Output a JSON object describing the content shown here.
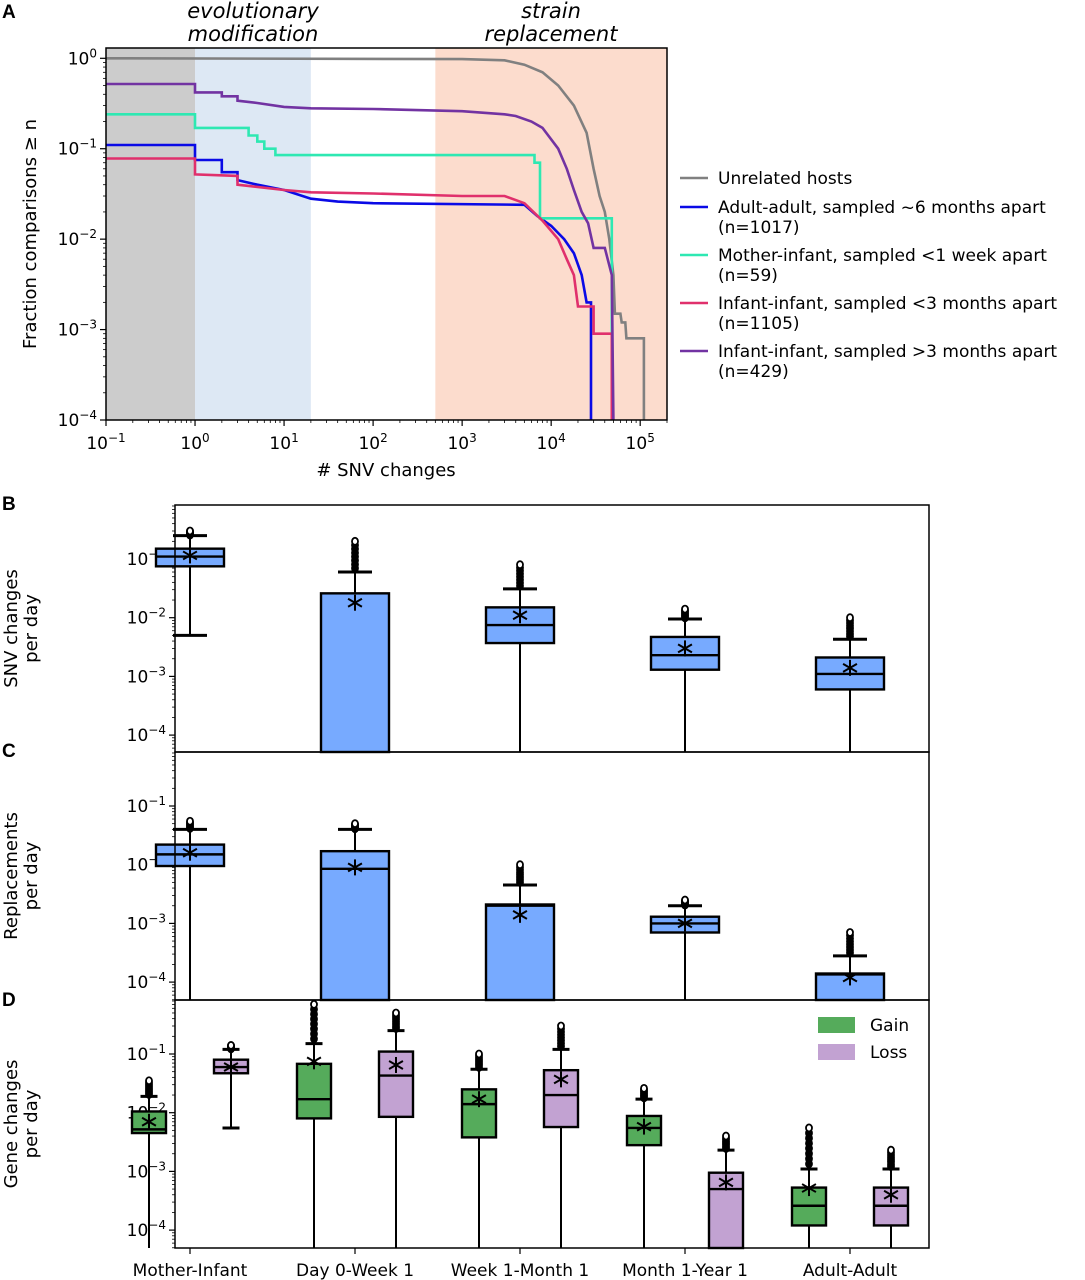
{
  "panel_labels": {
    "a": "A",
    "b": "B",
    "c": "C",
    "d": "D"
  },
  "annotations": {
    "evolutionary": [
      "evolutionary",
      "modification"
    ],
    "replacement": [
      "strain",
      "replacement"
    ],
    "evolutionary_color": "#6d9bb3",
    "replacement_color": "#c9735c"
  },
  "chart_data": [
    {
      "type": "line",
      "panel": "A",
      "xlabel": "# SNV changes",
      "ylabel": "Fraction comparisons ≥ n",
      "xscale": "log",
      "yscale": "log",
      "xlim": [
        0.1,
        200000
      ],
      "ylim": [
        0.0001,
        1.3
      ],
      "xtick_exponents": [
        -1,
        0,
        1,
        2,
        3,
        4,
        5
      ],
      "ytick_exponents": [
        0,
        -1,
        -2,
        -3,
        -4
      ],
      "shaded_regions": [
        {
          "from": 0.1,
          "to": 1,
          "color": "#cccccc"
        },
        {
          "from": 1,
          "to": 20,
          "color": "#dde8f4"
        },
        {
          "from": 500,
          "to": 200000,
          "color": "#fcdccd"
        }
      ],
      "legend_position": "right",
      "series": [
        {
          "name": "Unrelated hosts",
          "color": "#808080",
          "points": [
            [
              0.1,
              1
            ],
            [
              1000,
              0.98
            ],
            [
              3000,
              0.95
            ],
            [
              5000,
              0.85
            ],
            [
              8000,
              0.7
            ],
            [
              12000,
              0.5
            ],
            [
              18000,
              0.3
            ],
            [
              25000,
              0.15
            ],
            [
              30000,
              0.06
            ],
            [
              35000,
              0.03
            ],
            [
              40000,
              0.02
            ],
            [
              45000,
              0.01
            ],
            [
              50000,
              0.004
            ],
            [
              52000,
              0.0015
            ],
            [
              60000,
              0.0015
            ],
            [
              62000,
              0.0012
            ],
            [
              68000,
              0.0012
            ],
            [
              70000,
              0.0008
            ],
            [
              110000,
              0.0008
            ],
            [
              110000,
              0.0001
            ]
          ]
        },
        {
          "name": "Adult-adult, sampled ~6 months apart",
          "n": "(n=1017)",
          "color": "#0a0ae6",
          "points": [
            [
              0.1,
              0.11
            ],
            [
              1,
              0.11
            ],
            [
              1,
              0.075
            ],
            [
              2,
              0.075
            ],
            [
              2,
              0.055
            ],
            [
              3,
              0.055
            ],
            [
              3,
              0.045
            ],
            [
              5,
              0.04
            ],
            [
              10,
              0.035
            ],
            [
              20,
              0.028
            ],
            [
              40,
              0.026
            ],
            [
              100,
              0.025
            ],
            [
              5000,
              0.024
            ],
            [
              7000,
              0.018
            ],
            [
              10000,
              0.014
            ],
            [
              14000,
              0.01
            ],
            [
              18000,
              0.007
            ],
            [
              22000,
              0.004
            ],
            [
              25000,
              0.002
            ],
            [
              28000,
              0.002
            ],
            [
              28000,
              0.0001
            ]
          ]
        },
        {
          "name": "Mother-infant, sampled <1 week apart",
          "n": "(n=59)",
          "color": "#2ee8b2",
          "points": [
            [
              0.1,
              0.24
            ],
            [
              1,
              0.24
            ],
            [
              1,
              0.17
            ],
            [
              4,
              0.17
            ],
            [
              4,
              0.14
            ],
            [
              5,
              0.14
            ],
            [
              5,
              0.12
            ],
            [
              6,
              0.12
            ],
            [
              6,
              0.1
            ],
            [
              8,
              0.1
            ],
            [
              8,
              0.085
            ],
            [
              6500,
              0.085
            ],
            [
              6500,
              0.07
            ],
            [
              7500,
              0.07
            ],
            [
              7500,
              0.017
            ],
            [
              48000,
              0.017
            ],
            [
              48000,
              0.0001
            ]
          ]
        },
        {
          "name": "Infant-infant, sampled <3 months apart",
          "n": "(n=1105)",
          "color": "#e0306c",
          "points": [
            [
              0.1,
              0.078
            ],
            [
              1,
              0.078
            ],
            [
              1,
              0.052
            ],
            [
              3,
              0.05
            ],
            [
              3,
              0.04
            ],
            [
              10,
              0.035
            ],
            [
              20,
              0.033
            ],
            [
              100,
              0.032
            ],
            [
              1000,
              0.03
            ],
            [
              3000,
              0.03
            ],
            [
              5000,
              0.025
            ],
            [
              8000,
              0.016
            ],
            [
              12000,
              0.01
            ],
            [
              15000,
              0.006
            ],
            [
              18000,
              0.004
            ],
            [
              20000,
              0.0018
            ],
            [
              30000,
              0.0018
            ],
            [
              30000,
              0.0009
            ],
            [
              48000,
              0.0009
            ],
            [
              48000,
              0.0001
            ]
          ]
        },
        {
          "name": "Infant-infant, sampled >3 months apart",
          "n": "(n=429)",
          "color": "#7233a2",
          "points": [
            [
              0.1,
              0.52
            ],
            [
              1,
              0.52
            ],
            [
              1,
              0.42
            ],
            [
              2,
              0.42
            ],
            [
              2,
              0.38
            ],
            [
              3,
              0.38
            ],
            [
              3,
              0.34
            ],
            [
              5,
              0.32
            ],
            [
              10,
              0.29
            ],
            [
              20,
              0.28
            ],
            [
              100,
              0.275
            ],
            [
              1000,
              0.26
            ],
            [
              3000,
              0.24
            ],
            [
              4000,
              0.23
            ],
            [
              6000,
              0.2
            ],
            [
              8000,
              0.17
            ],
            [
              12000,
              0.1
            ],
            [
              15000,
              0.06
            ],
            [
              18000,
              0.035
            ],
            [
              22000,
              0.02
            ],
            [
              26000,
              0.015
            ],
            [
              30000,
              0.008
            ],
            [
              40000,
              0.008
            ],
            [
              48000,
              0.004
            ],
            [
              50000,
              0.0001
            ]
          ]
        }
      ]
    },
    {
      "type": "box",
      "panel": "B",
      "ylabel": [
        "SNV changes",
        "per day"
      ],
      "yscale": "log",
      "ytick_exponents": [
        -1,
        -2,
        -3,
        -4
      ],
      "categories": [
        "Mother-Infant",
        "Day 0-Week 1",
        "Week 1-Month 1",
        "Month 1-Year 1",
        "Adult-Adult"
      ],
      "series": [
        {
          "name": "SNV",
          "color": "#77aaff",
          "boxes": [
            {
              "low": 0.005,
              "q1": 0.075,
              "median": 0.11,
              "q3": 0.15,
              "high": 0.25,
              "flier_max": 0.3,
              "mean": 0.115
            },
            {
              "low": 0,
              "q1": 0,
              "median": 0,
              "q3": 0.026,
              "high": 0.06,
              "flier_max": 0.2,
              "mean": 0.018
            },
            {
              "low": 0,
              "q1": 0.0037,
              "median": 0.0075,
              "q3": 0.015,
              "high": 0.031,
              "flier_max": 0.08,
              "mean": 0.011
            },
            {
              "low": 0,
              "q1": 0.0013,
              "median": 0.0023,
              "q3": 0.0047,
              "high": 0.0095,
              "flier_max": 0.014,
              "mean": 0.003
            },
            {
              "low": 0,
              "q1": 0.0006,
              "median": 0.0011,
              "q3": 0.0021,
              "high": 0.0043,
              "flier_max": 0.01,
              "mean": 0.0014
            }
          ]
        }
      ]
    },
    {
      "type": "box",
      "panel": "C",
      "ylabel": [
        "Replacements",
        "per day"
      ],
      "yscale": "log",
      "ytick_exponents": [
        -1,
        -2,
        -3,
        -4
      ],
      "categories": [
        "Mother-Infant",
        "Day 0-Week 1",
        "Week 1-Month 1",
        "Month 1-Year 1",
        "Adult-Adult"
      ],
      "series": [
        {
          "name": "Replacements",
          "color": "#77aaff",
          "boxes": [
            {
              "low": 0,
              "q1": 0.0095,
              "median": 0.015,
              "q3": 0.022,
              "high": 0.04,
              "flier_max": 0.055,
              "mean": 0.016
            },
            {
              "low": 0,
              "q1": 0,
              "median": 0.0085,
              "q3": 0.017,
              "high": 0.04,
              "flier_max": 0.05,
              "mean": 0.009
            },
            {
              "low": 0,
              "q1": 0,
              "median": 0.002,
              "q3": 0.0021,
              "high": 0.0045,
              "flier_max": 0.01,
              "mean": 0.0014
            },
            {
              "low": 0,
              "q1": 0.0007,
              "median": 0.001,
              "q3": 0.0013,
              "high": 0.002,
              "flier_max": 0.0025,
              "mean": 0.001
            },
            {
              "low": 0,
              "q1": 0,
              "median": 0.000135,
              "q3": 0.00014,
              "high": 0.00028,
              "flier_max": 0.0007,
              "mean": 0.00012
            }
          ]
        }
      ]
    },
    {
      "type": "box",
      "panel": "D",
      "ylabel": [
        "Gene changes",
        "per day"
      ],
      "yscale": "log",
      "ytick_exponents": [
        -1,
        -2,
        -3,
        -4
      ],
      "categories": [
        "Mother-Infant",
        "Day 0-Week 1",
        "Week 1-Month 1",
        "Month 1-Year 1",
        "Adult-Adult"
      ],
      "legend_position": "top-right",
      "series": [
        {
          "name": "Gain",
          "color": "#55ab5b",
          "boxes": [
            {
              "low": 0,
              "q1": 0.0045,
              "median": 0.0052,
              "q3": 0.0105,
              "high": 0.019,
              "flier_max": 0.035,
              "mean": 0.007
            },
            {
              "low": 0,
              "q1": 0.008,
              "median": 0.017,
              "q3": 0.068,
              "high": 0.15,
              "flier_max": 0.7,
              "mean": 0.075
            },
            {
              "low": 0,
              "q1": 0.0038,
              "median": 0.014,
              "q3": 0.025,
              "high": 0.055,
              "flier_max": 0.1,
              "mean": 0.017
            },
            {
              "low": 0,
              "q1": 0.0028,
              "median": 0.0055,
              "q3": 0.0088,
              "high": 0.017,
              "flier_max": 0.026,
              "mean": 0.0058
            },
            {
              "low": 0,
              "q1": 0.00012,
              "median": 0.00026,
              "q3": 0.00053,
              "high": 0.0011,
              "flier_max": 0.0055,
              "mean": 0.00052
            }
          ]
        },
        {
          "name": "Loss",
          "color": "#c2a2d2",
          "boxes": [
            {
              "low": 0.0055,
              "q1": 0.047,
              "median": 0.06,
              "q3": 0.08,
              "high": 0.12,
              "flier_max": 0.14,
              "mean": 0.06
            },
            {
              "low": 0,
              "q1": 0.0085,
              "median": 0.043,
              "q3": 0.11,
              "high": 0.25,
              "flier_max": 0.5,
              "mean": 0.065
            },
            {
              "low": 0,
              "q1": 0.0057,
              "median": 0.02,
              "q3": 0.053,
              "high": 0.12,
              "flier_max": 0.3,
              "mean": 0.037
            },
            {
              "low": 0,
              "q1": 0,
              "median": 0.0005,
              "q3": 0.00095,
              "high": 0.0023,
              "flier_max": 0.004,
              "mean": 0.00065
            },
            {
              "low": 0,
              "q1": 0.00012,
              "median": 0.00026,
              "q3": 0.00053,
              "high": 0.0011,
              "flier_max": 0.0023,
              "mean": 0.0004
            }
          ]
        }
      ]
    }
  ]
}
